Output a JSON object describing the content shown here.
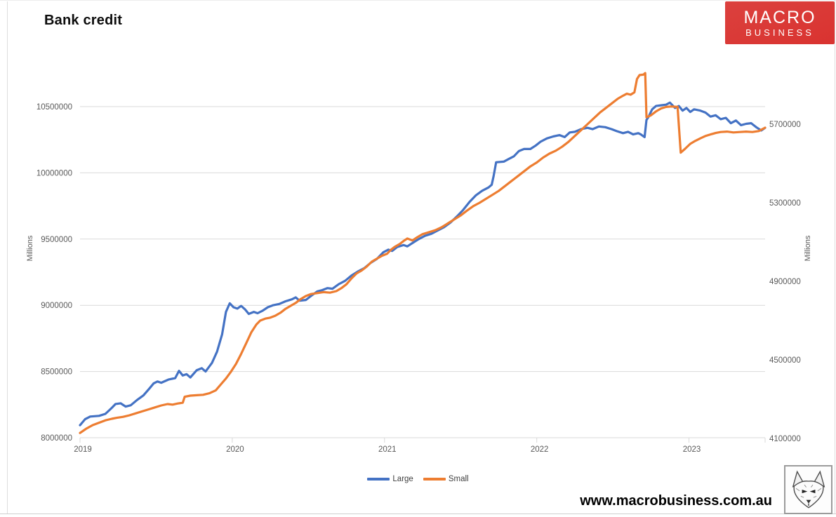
{
  "page": {
    "title": "Bank credit",
    "website": "www.macrobusiness.com.au",
    "logo": {
      "line1": "MACRO",
      "line2": "BUSINESS",
      "bg_color": "#d93330",
      "text_color": "#ffffff"
    }
  },
  "colors": {
    "grid": "#d9d9d9",
    "axis_text": "#595959",
    "large_line": "#4472C4",
    "small_line": "#ED7D31"
  },
  "chart_data": {
    "type": "line",
    "title": "Bank credit",
    "grid": true,
    "legend": {
      "position": "bottom",
      "items": [
        "Large",
        "Small"
      ]
    },
    "x_axis": {
      "tick_labels": [
        "2019",
        "2020",
        "2021",
        "2022",
        "2023"
      ],
      "tick_month_positions": [
        0,
        12,
        24,
        36,
        48
      ],
      "months_span": 54
    },
    "left_axis": {
      "title": "Millions",
      "ticks": [
        8000000,
        8500000,
        9000000,
        9500000,
        10000000,
        10500000
      ],
      "range_min": 8000000,
      "range_max": 10500000
    },
    "right_axis": {
      "title": "Millions",
      "ticks": [
        4100000,
        4500000,
        4900000,
        5300000,
        5700000
      ],
      "range_min": 4100000,
      "range_max": 5700000
    },
    "series": [
      {
        "name": "Large",
        "color": "#4472C4",
        "axis": "left",
        "points": [
          [
            0,
            8095000
          ],
          [
            0.4,
            8140000
          ],
          [
            0.8,
            8160000
          ],
          [
            1.5,
            8165000
          ],
          [
            2,
            8180000
          ],
          [
            2.5,
            8225000
          ],
          [
            2.8,
            8255000
          ],
          [
            3.2,
            8260000
          ],
          [
            3.6,
            8235000
          ],
          [
            4,
            8245000
          ],
          [
            4.5,
            8285000
          ],
          [
            5,
            8320000
          ],
          [
            5.5,
            8375000
          ],
          [
            5.8,
            8410000
          ],
          [
            6.1,
            8425000
          ],
          [
            6.4,
            8415000
          ],
          [
            7,
            8440000
          ],
          [
            7.5,
            8450000
          ],
          [
            7.8,
            8505000
          ],
          [
            8.1,
            8470000
          ],
          [
            8.4,
            8480000
          ],
          [
            8.7,
            8455000
          ],
          [
            9.2,
            8510000
          ],
          [
            9.6,
            8525000
          ],
          [
            9.9,
            8500000
          ],
          [
            10.4,
            8565000
          ],
          [
            10.8,
            8650000
          ],
          [
            11.2,
            8780000
          ],
          [
            11.5,
            8950000
          ],
          [
            11.8,
            9015000
          ],
          [
            12.1,
            8985000
          ],
          [
            12.4,
            8975000
          ],
          [
            12.7,
            8995000
          ],
          [
            13,
            8970000
          ],
          [
            13.3,
            8935000
          ],
          [
            13.7,
            8950000
          ],
          [
            14,
            8940000
          ],
          [
            14.4,
            8960000
          ],
          [
            14.8,
            8985000
          ],
          [
            15.2,
            9000000
          ],
          [
            15.7,
            9010000
          ],
          [
            16.2,
            9030000
          ],
          [
            16.7,
            9045000
          ],
          [
            17,
            9060000
          ],
          [
            17.3,
            9035000
          ],
          [
            17.8,
            9040000
          ],
          [
            18.2,
            9070000
          ],
          [
            18.7,
            9105000
          ],
          [
            19.1,
            9115000
          ],
          [
            19.5,
            9130000
          ],
          [
            19.9,
            9125000
          ],
          [
            20.4,
            9160000
          ],
          [
            20.9,
            9185000
          ],
          [
            21.4,
            9225000
          ],
          [
            21.9,
            9255000
          ],
          [
            22.4,
            9280000
          ],
          [
            22.9,
            9320000
          ],
          [
            23.4,
            9350000
          ],
          [
            23.9,
            9400000
          ],
          [
            24.3,
            9420000
          ],
          [
            24.6,
            9410000
          ],
          [
            25,
            9440000
          ],
          [
            25.5,
            9455000
          ],
          [
            25.8,
            9445000
          ],
          [
            26.2,
            9470000
          ],
          [
            26.7,
            9500000
          ],
          [
            27.2,
            9525000
          ],
          [
            27.7,
            9540000
          ],
          [
            28.2,
            9565000
          ],
          [
            28.7,
            9590000
          ],
          [
            29.2,
            9625000
          ],
          [
            29.7,
            9670000
          ],
          [
            30.2,
            9720000
          ],
          [
            30.7,
            9780000
          ],
          [
            31.2,
            9830000
          ],
          [
            31.7,
            9865000
          ],
          [
            32.2,
            9890000
          ],
          [
            32.45,
            9910000
          ],
          [
            32.6,
            9975000
          ],
          [
            32.8,
            10080000
          ],
          [
            33.4,
            10085000
          ],
          [
            33.8,
            10105000
          ],
          [
            34.2,
            10125000
          ],
          [
            34.6,
            10165000
          ],
          [
            35,
            10180000
          ],
          [
            35.5,
            10180000
          ],
          [
            35.9,
            10205000
          ],
          [
            36.3,
            10235000
          ],
          [
            36.8,
            10260000
          ],
          [
            37.3,
            10275000
          ],
          [
            37.8,
            10285000
          ],
          [
            38.2,
            10270000
          ],
          [
            38.6,
            10305000
          ],
          [
            39,
            10310000
          ],
          [
            39.5,
            10330000
          ],
          [
            40,
            10340000
          ],
          [
            40.4,
            10330000
          ],
          [
            40.9,
            10350000
          ],
          [
            41.4,
            10345000
          ],
          [
            41.9,
            10330000
          ],
          [
            42.3,
            10315000
          ],
          [
            42.8,
            10300000
          ],
          [
            43.2,
            10310000
          ],
          [
            43.6,
            10290000
          ],
          [
            44,
            10300000
          ],
          [
            44.2,
            10290000
          ],
          [
            44.5,
            10270000
          ],
          [
            44.65,
            10400000
          ],
          [
            44.8,
            10420000
          ],
          [
            45.1,
            10480000
          ],
          [
            45.4,
            10505000
          ],
          [
            45.8,
            10510000
          ],
          [
            46.2,
            10515000
          ],
          [
            46.5,
            10530000
          ],
          [
            46.9,
            10490000
          ],
          [
            47.2,
            10505000
          ],
          [
            47.5,
            10470000
          ],
          [
            47.8,
            10490000
          ],
          [
            48.1,
            10460000
          ],
          [
            48.4,
            10480000
          ],
          [
            48.9,
            10470000
          ],
          [
            49.3,
            10455000
          ],
          [
            49.7,
            10425000
          ],
          [
            50.1,
            10435000
          ],
          [
            50.5,
            10405000
          ],
          [
            50.9,
            10415000
          ],
          [
            51.3,
            10375000
          ],
          [
            51.7,
            10395000
          ],
          [
            52.1,
            10360000
          ],
          [
            52.5,
            10370000
          ],
          [
            52.9,
            10375000
          ],
          [
            53.3,
            10345000
          ],
          [
            53.7,
            10320000
          ],
          [
            54,
            10340000
          ]
        ]
      },
      {
        "name": "Small",
        "color": "#ED7D31",
        "axis": "right",
        "points": [
          [
            0,
            4128000
          ],
          [
            0.5,
            4150000
          ],
          [
            1,
            4168000
          ],
          [
            1.5,
            4180000
          ],
          [
            2,
            4192000
          ],
          [
            2.5,
            4200000
          ],
          [
            2.9,
            4205000
          ],
          [
            3.4,
            4210000
          ],
          [
            3.9,
            4218000
          ],
          [
            4.4,
            4228000
          ],
          [
            4.9,
            4238000
          ],
          [
            5.4,
            4248000
          ],
          [
            5.9,
            4258000
          ],
          [
            6.4,
            4268000
          ],
          [
            6.9,
            4275000
          ],
          [
            7.3,
            4272000
          ],
          [
            7.7,
            4278000
          ],
          [
            8.1,
            4282000
          ],
          [
            8.25,
            4312000
          ],
          [
            8.7,
            4318000
          ],
          [
            9.2,
            4320000
          ],
          [
            9.7,
            4322000
          ],
          [
            10.2,
            4330000
          ],
          [
            10.7,
            4345000
          ],
          [
            11.1,
            4375000
          ],
          [
            11.5,
            4405000
          ],
          [
            11.9,
            4440000
          ],
          [
            12.3,
            4480000
          ],
          [
            12.7,
            4530000
          ],
          [
            13.1,
            4585000
          ],
          [
            13.5,
            4640000
          ],
          [
            13.9,
            4680000
          ],
          [
            14.2,
            4700000
          ],
          [
            14.6,
            4710000
          ],
          [
            15,
            4715000
          ],
          [
            15.4,
            4725000
          ],
          [
            15.8,
            4740000
          ],
          [
            16.2,
            4760000
          ],
          [
            16.6,
            4775000
          ],
          [
            17,
            4790000
          ],
          [
            17.4,
            4810000
          ],
          [
            17.8,
            4825000
          ],
          [
            18.2,
            4835000
          ],
          [
            18.7,
            4840000
          ],
          [
            19.2,
            4845000
          ],
          [
            19.7,
            4842000
          ],
          [
            20.2,
            4850000
          ],
          [
            20.6,
            4865000
          ],
          [
            21,
            4885000
          ],
          [
            21.4,
            4915000
          ],
          [
            21.8,
            4940000
          ],
          [
            22.2,
            4955000
          ],
          [
            22.6,
            4975000
          ],
          [
            23,
            5000000
          ],
          [
            23.4,
            5015000
          ],
          [
            23.8,
            5030000
          ],
          [
            24.2,
            5040000
          ],
          [
            24.5,
            5060000
          ],
          [
            24.8,
            5075000
          ],
          [
            25.2,
            5090000
          ],
          [
            25.5,
            5105000
          ],
          [
            25.8,
            5118000
          ],
          [
            26.2,
            5108000
          ],
          [
            26.6,
            5125000
          ],
          [
            27,
            5140000
          ],
          [
            27.5,
            5150000
          ],
          [
            28,
            5160000
          ],
          [
            28.5,
            5175000
          ],
          [
            29,
            5195000
          ],
          [
            29.5,
            5215000
          ],
          [
            30,
            5235000
          ],
          [
            30.5,
            5260000
          ],
          [
            31,
            5283000
          ],
          [
            31.5,
            5300000
          ],
          [
            32,
            5320000
          ],
          [
            32.5,
            5340000
          ],
          [
            33,
            5360000
          ],
          [
            33.5,
            5385000
          ],
          [
            34,
            5410000
          ],
          [
            34.5,
            5435000
          ],
          [
            35,
            5460000
          ],
          [
            35.5,
            5485000
          ],
          [
            36,
            5505000
          ],
          [
            36.5,
            5530000
          ],
          [
            37,
            5550000
          ],
          [
            37.5,
            5565000
          ],
          [
            38,
            5585000
          ],
          [
            38.5,
            5610000
          ],
          [
            39,
            5640000
          ],
          [
            39.5,
            5670000
          ],
          [
            40,
            5700000
          ],
          [
            40.5,
            5730000
          ],
          [
            41,
            5760000
          ],
          [
            41.5,
            5785000
          ],
          [
            42,
            5810000
          ],
          [
            42.4,
            5830000
          ],
          [
            42.8,
            5845000
          ],
          [
            43.1,
            5855000
          ],
          [
            43.4,
            5850000
          ],
          [
            43.7,
            5862000
          ],
          [
            43.9,
            5930000
          ],
          [
            44.1,
            5950000
          ],
          [
            44.4,
            5952000
          ],
          [
            44.55,
            5960000
          ],
          [
            44.65,
            5735000
          ],
          [
            45,
            5745000
          ],
          [
            45.4,
            5765000
          ],
          [
            45.8,
            5780000
          ],
          [
            46.2,
            5788000
          ],
          [
            46.6,
            5790000
          ],
          [
            47.1,
            5788000
          ],
          [
            47.35,
            5555000
          ],
          [
            47.7,
            5575000
          ],
          [
            48.1,
            5600000
          ],
          [
            48.5,
            5615000
          ],
          [
            48.9,
            5628000
          ],
          [
            49.3,
            5640000
          ],
          [
            49.7,
            5648000
          ],
          [
            50.1,
            5655000
          ],
          [
            50.5,
            5660000
          ],
          [
            51,
            5662000
          ],
          [
            51.5,
            5658000
          ],
          [
            52,
            5660000
          ],
          [
            52.5,
            5662000
          ],
          [
            53,
            5660000
          ],
          [
            53.5,
            5665000
          ],
          [
            54,
            5682000
          ]
        ]
      }
    ]
  }
}
